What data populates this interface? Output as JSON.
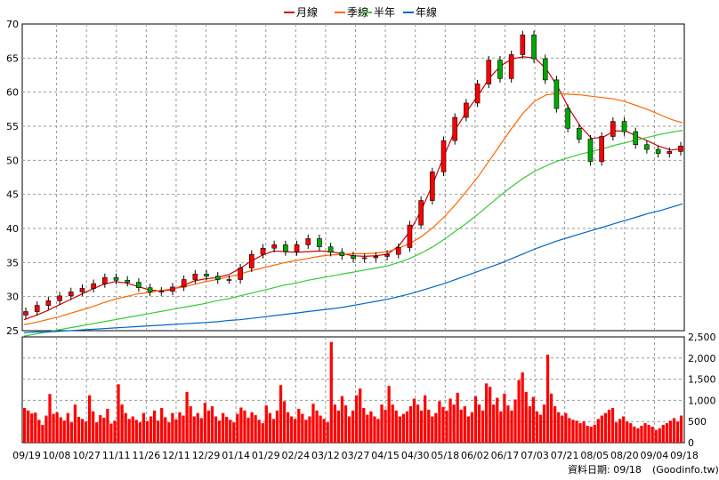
{
  "chart_data": [
    {
      "type": "candlestick",
      "ylim": [
        25,
        70
      ],
      "y_ticks": [
        "70",
        "65",
        "60",
        "55",
        "50",
        "45",
        "40",
        "35",
        "30",
        "25"
      ],
      "x_ticks": [
        "09/19",
        "10/08",
        "10/27",
        "11/11",
        "11/26",
        "12/11",
        "12/29",
        "01/14",
        "01/29",
        "02/24",
        "03/12",
        "03/27",
        "04/15",
        "04/30",
        "05/18",
        "06/02",
        "06/17",
        "07/03",
        "07/21",
        "08/05",
        "08/20",
        "09/04",
        "09/18"
      ],
      "grid": true,
      "legend_position": "top-center",
      "price_close": [
        27.8,
        28.7,
        29.4,
        30.1,
        30.7,
        31.2,
        31.9,
        32.8,
        32.4,
        32.1,
        31.3,
        30.7,
        30.8,
        31.4,
        32.5,
        33.3,
        33.0,
        32.5,
        32.5,
        34.2,
        36.2,
        37.1,
        37.6,
        36.6,
        37.6,
        38.5,
        37.3,
        36.5,
        36.0,
        35.6,
        35.7,
        35.9,
        36.2,
        37.2,
        40.5,
        44.1,
        48.3,
        52.9,
        56.3,
        58.4,
        61.2,
        64.7,
        62.0,
        65.5,
        68.4,
        64.9,
        61.8,
        57.6,
        54.7,
        53.1,
        49.8,
        53.5,
        55.7,
        54.2,
        52.3,
        51.6,
        51.0,
        51.3,
        52.1
      ],
      "ylim_note": "",
      "series": [
        {
          "name": "月線",
          "color": "#cc0000",
          "values": [
            26.6,
            27.2,
            27.9,
            28.7,
            29.5,
            30.3,
            31.1,
            31.8,
            32.2,
            32.0,
            31.5,
            31.0,
            30.8,
            31.0,
            31.6,
            32.3,
            32.6,
            32.8,
            33.2,
            34.1,
            35.2,
            36.1,
            36.7,
            36.6,
            36.5,
            36.6,
            36.7,
            36.6,
            36.3,
            36.0,
            35.9,
            36.0,
            36.2,
            37.4,
            39.6,
            42.7,
            46.5,
            50.7,
            54.5,
            57.2,
            59.5,
            62.1,
            63.9,
            64.9,
            65.2,
            65.0,
            63.4,
            60.8,
            57.6,
            55.0,
            53.2,
            53.4,
            54.3,
            54.3,
            53.5,
            52.8,
            52.0,
            51.5,
            51.7
          ]
        },
        {
          "name": "季線",
          "color": "#ff6600",
          "values": [
            25.9,
            26.2,
            26.6,
            27.0,
            27.5,
            28.0,
            28.5,
            29.1,
            29.6,
            30.0,
            30.4,
            30.6,
            30.9,
            31.1,
            31.4,
            31.8,
            32.2,
            32.5,
            32.9,
            33.3,
            33.8,
            34.2,
            34.6,
            35.0,
            35.3,
            35.6,
            35.9,
            36.1,
            36.2,
            36.3,
            36.3,
            36.4,
            36.6,
            37.1,
            37.8,
            38.8,
            40.1,
            41.7,
            43.5,
            45.5,
            47.6,
            50.0,
            52.4,
            54.8,
            57.0,
            58.7,
            59.6,
            59.8,
            59.7,
            59.6,
            59.4,
            59.2,
            59.0,
            58.6,
            58.0,
            57.4,
            56.7,
            56.0,
            55.5
          ]
        },
        {
          "name": "半年",
          "color": "#33cc33",
          "values": [
            24.2,
            24.5,
            24.8,
            25.1,
            25.4,
            25.7,
            26.0,
            26.3,
            26.6,
            26.9,
            27.2,
            27.5,
            27.8,
            28.1,
            28.4,
            28.7,
            29.0,
            29.4,
            29.7,
            30.1,
            30.5,
            30.9,
            31.3,
            31.7,
            32.0,
            32.4,
            32.7,
            33.0,
            33.3,
            33.6,
            33.9,
            34.2,
            34.5,
            35.0,
            35.6,
            36.4,
            37.3,
            38.4,
            39.6,
            40.8,
            42.1,
            43.5,
            44.9,
            46.2,
            47.4,
            48.4,
            49.2,
            49.9,
            50.4,
            50.9,
            51.3,
            51.7,
            52.2,
            52.6,
            53.0,
            53.4,
            53.8,
            54.1,
            54.4
          ]
        },
        {
          "name": "年線",
          "color": "#0066cc",
          "values": [
            24.7,
            24.8,
            24.8,
            24.9,
            25.0,
            25.1,
            25.2,
            25.3,
            25.4,
            25.5,
            25.6,
            25.7,
            25.8,
            25.9,
            26.0,
            26.1,
            26.2,
            26.3,
            26.5,
            26.6,
            26.8,
            27.0,
            27.2,
            27.4,
            27.6,
            27.8,
            28.0,
            28.2,
            28.4,
            28.7,
            29.0,
            29.3,
            29.6,
            30.0,
            30.4,
            30.9,
            31.4,
            31.9,
            32.5,
            33.1,
            33.7,
            34.3,
            34.9,
            35.6,
            36.3,
            37.0,
            37.6,
            38.2,
            38.7,
            39.2,
            39.7,
            40.2,
            40.7,
            41.2,
            41.7,
            42.2,
            42.6,
            43.1,
            43.6
          ]
        }
      ]
    },
    {
      "type": "bar",
      "ylim": [
        0,
        2500
      ],
      "y_ticks": [
        "2,500",
        "2,000",
        "1,500",
        "1,000",
        "500",
        "0"
      ],
      "bar_color": "#ff0000",
      "values": [
        820,
        760,
        690,
        710,
        540,
        420,
        640,
        1150,
        680,
        720,
        600,
        520,
        700,
        480,
        900,
        610,
        560,
        500,
        1120,
        740,
        480,
        650,
        590,
        800,
        450,
        520,
        1380,
        900,
        700,
        560,
        620,
        540,
        480,
        700,
        510,
        620,
        760,
        520,
        820,
        600,
        480,
        700,
        550,
        720,
        640,
        1200,
        860,
        620,
        700,
        580,
        940,
        760,
        860,
        620,
        520,
        700,
        610,
        540,
        480,
        680,
        830,
        760,
        590,
        720,
        650,
        540,
        460,
        880,
        700,
        560,
        760,
        1360,
        980,
        720,
        620,
        560,
        800,
        680,
        540,
        620,
        920,
        760,
        640,
        560,
        480,
        2380,
        900,
        760,
        1100,
        880,
        620,
        760,
        1120,
        1280,
        820,
        660,
        740,
        620,
        560,
        900,
        780,
        1340,
        900,
        760,
        620,
        680,
        740,
        860,
        1040,
        900,
        760,
        1120,
        780,
        620,
        700,
        980,
        840,
        760,
        1040,
        900,
        1180,
        780,
        860,
        620,
        720,
        1100,
        900,
        760,
        1400,
        1320,
        900,
        1060,
        740,
        1160,
        880,
        760,
        1020,
        1480,
        1660,
        1200,
        860,
        1080,
        740,
        660,
        900,
        2080,
        1160,
        860,
        720,
        640,
        700,
        580,
        540,
        520,
        460,
        500,
        400,
        380,
        420,
        560,
        640,
        700,
        780,
        820,
        480,
        560,
        620,
        500,
        460,
        380,
        340,
        400,
        460,
        420,
        380,
        300,
        340,
        420,
        460,
        520,
        580,
        500,
        640
      ]
    }
  ],
  "legend": [
    {
      "label": "月線",
      "color": "#cc0000"
    },
    {
      "label": "季線",
      "color": "#ff6600"
    },
    {
      "label": "半年",
      "color": "#33cc33"
    },
    {
      "label": "年線",
      "color": "#0066cc"
    }
  ],
  "footer": {
    "data_date": "資料日期: 09/18",
    "source": "(Goodinfo.tw)"
  }
}
